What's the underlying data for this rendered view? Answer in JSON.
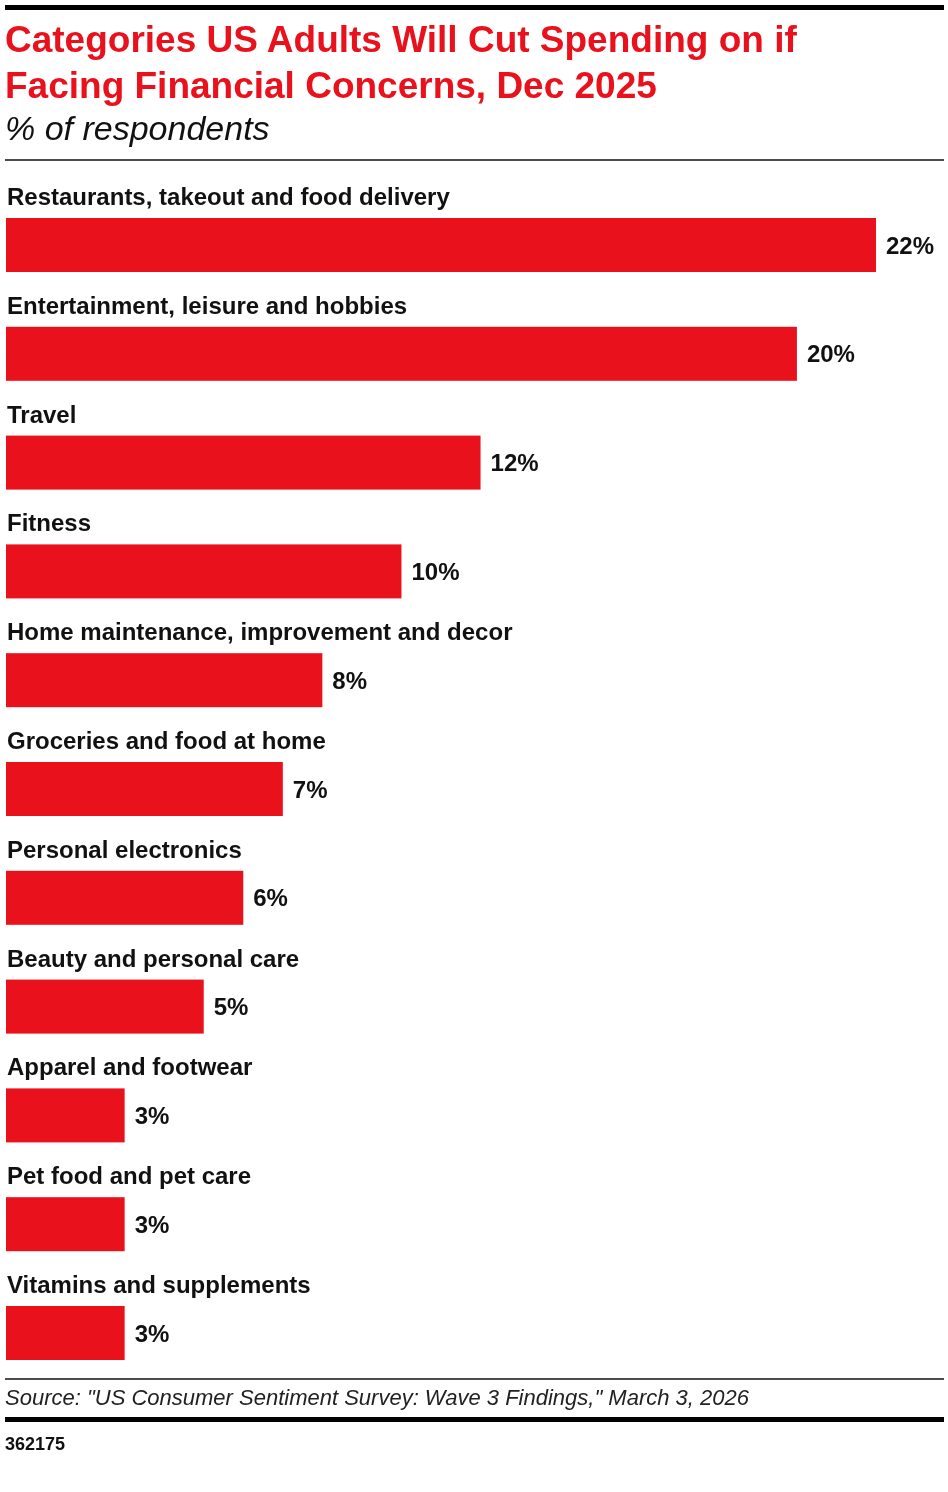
{
  "chart_data": {
    "type": "bar",
    "orientation": "horizontal",
    "title": "Categories US Adults Will Cut Spending on if Facing Financial Concerns, Dec 2025",
    "subtitle": "% of respondents",
    "categories": [
      "Restaurants, takeout and food delivery",
      "Entertainment, leisure and hobbies",
      "Travel",
      "Fitness",
      "Home maintenance, improvement and decor",
      "Groceries and food at home",
      "Personal electronics",
      "Beauty and personal care",
      "Apparel and footwear",
      "Pet food and pet care",
      "Vitamins and supplements"
    ],
    "values": [
      22,
      20,
      12,
      10,
      8,
      7,
      6,
      5,
      3,
      3,
      3
    ],
    "value_labels": [
      "22%",
      "20%",
      "12%",
      "10%",
      "8%",
      "7%",
      "6%",
      "5%",
      "3%",
      "3%",
      "3%"
    ],
    "color": "#e8111c",
    "xlim": [
      0,
      22
    ],
    "annotations": [
      "Source: \"US Consumer Sentiment Survey: Wave 3 Findings,\" March 3, 2026",
      "362175"
    ]
  }
}
